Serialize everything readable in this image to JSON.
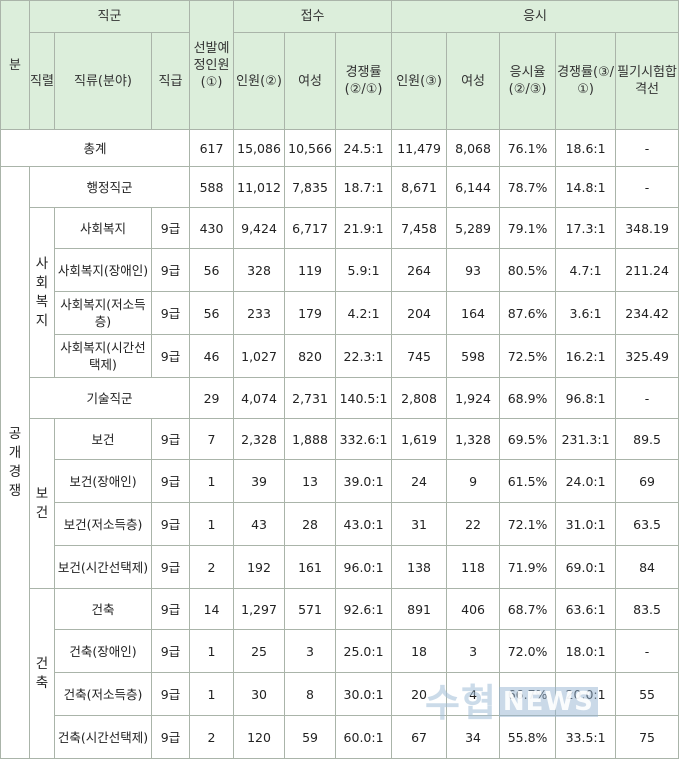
{
  "header": {
    "bun": "분",
    "jikgun": "직군",
    "sunbal": "선발예정인원(①)",
    "jeopsu": "접수",
    "eungsi": "응시",
    "jikryeol": "직렬",
    "jikryu": "직류(분야)",
    "jikgeup": "직급",
    "inwon2": "인원(②)",
    "yeoseong": "여성",
    "gyeongjaeng21": "경쟁률(②/①)",
    "inwon3": "인원(③)",
    "yeoseong2": "여성",
    "eungsiyul": "응시율(②/③)",
    "gyeongjaeng31": "경쟁률(③/①)",
    "pilgi": "필기시험합격선"
  },
  "total": {
    "label": "총계",
    "values": [
      "617",
      "15,086",
      "10,566",
      "24.5:1",
      "11,479",
      "8,068",
      "76.1%",
      "18.6:1",
      "-"
    ]
  },
  "side_label": "공개경쟁",
  "groups": [
    {
      "label": "행정직군",
      "values": [
        "588",
        "11,012",
        "7,835",
        "18.7:1",
        "8,671",
        "6,144",
        "78.7%",
        "14.8:1",
        "-"
      ]
    },
    {
      "label": "기술직군",
      "values": [
        "29",
        "4,074",
        "2,731",
        "140.5:1",
        "2,808",
        "1,924",
        "68.9%",
        "96.8:1",
        "-"
      ]
    }
  ],
  "series": [
    {
      "label": "사회복지",
      "rows": [
        {
          "name": "사회복지",
          "grade": "9급",
          "values": [
            "430",
            "9,424",
            "6,717",
            "21.9:1",
            "7,458",
            "5,289",
            "79.1%",
            "17.3:1",
            "348.19"
          ]
        },
        {
          "name": "사회복지(장애인)",
          "grade": "9급",
          "values": [
            "56",
            "328",
            "119",
            "5.9:1",
            "264",
            "93",
            "80.5%",
            "4.7:1",
            "211.24"
          ]
        },
        {
          "name": "사회복지(저소득층)",
          "grade": "9급",
          "values": [
            "56",
            "233",
            "179",
            "4.2:1",
            "204",
            "164",
            "87.6%",
            "3.6:1",
            "234.42"
          ]
        },
        {
          "name": "사회복지(시간선택제)",
          "grade": "9급",
          "values": [
            "46",
            "1,027",
            "820",
            "22.3:1",
            "745",
            "598",
            "72.5%",
            "16.2:1",
            "325.49"
          ]
        }
      ]
    },
    {
      "label": "보건",
      "rows": [
        {
          "name": "보건",
          "grade": "9급",
          "values": [
            "7",
            "2,328",
            "1,888",
            "332.6:1",
            "1,619",
            "1,328",
            "69.5%",
            "231.3:1",
            "89.5"
          ]
        },
        {
          "name": "보건(장애인)",
          "grade": "9급",
          "values": [
            "1",
            "39",
            "13",
            "39.0:1",
            "24",
            "9",
            "61.5%",
            "24.0:1",
            "69"
          ]
        },
        {
          "name": "보건(저소득층)",
          "grade": "9급",
          "values": [
            "1",
            "43",
            "28",
            "43.0:1",
            "31",
            "22",
            "72.1%",
            "31.0:1",
            "63.5"
          ]
        },
        {
          "name": "보건(시간선택제)",
          "grade": "9급",
          "values": [
            "2",
            "192",
            "161",
            "96.0:1",
            "138",
            "118",
            "71.9%",
            "69.0:1",
            "84"
          ]
        }
      ]
    },
    {
      "label": "건축",
      "rows": [
        {
          "name": "건축",
          "grade": "9급",
          "values": [
            "14",
            "1,297",
            "571",
            "92.6:1",
            "891",
            "406",
            "68.7%",
            "63.6:1",
            "83.5"
          ]
        },
        {
          "name": "건축(장애인)",
          "grade": "9급",
          "values": [
            "1",
            "25",
            "3",
            "25.0:1",
            "18",
            "3",
            "72.0%",
            "18.0:1",
            "-"
          ]
        },
        {
          "name": "건축(저소득층)",
          "grade": "9급",
          "values": [
            "1",
            "30",
            "8",
            "30.0:1",
            "20",
            "4",
            "66.7%",
            "20.0:1",
            "55"
          ]
        },
        {
          "name": "건축(시간선택제)",
          "grade": "9급",
          "values": [
            "2",
            "120",
            "59",
            "60.0:1",
            "67",
            "34",
            "55.8%",
            "33.5:1",
            "75"
          ]
        }
      ]
    }
  ],
  "watermark": {
    "text": "수협",
    "box": "NEWS"
  }
}
